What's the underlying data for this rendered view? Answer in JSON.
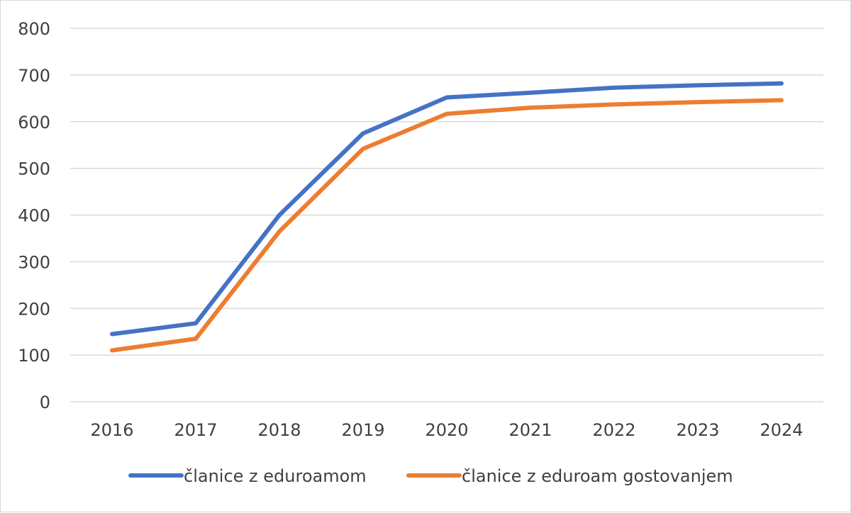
{
  "chart_data": {
    "type": "line",
    "title": "",
    "xlabel": "",
    "ylabel": "",
    "categories": [
      "2016",
      "2017",
      "2018",
      "2019",
      "2020",
      "2021",
      "2022",
      "2023",
      "2024"
    ],
    "ylim": [
      0,
      800
    ],
    "yticks": [
      "0",
      "100",
      "200",
      "300",
      "400",
      "500",
      "600",
      "700",
      "800"
    ],
    "grid": "horizontal",
    "legend_position": "bottom",
    "series": [
      {
        "name": "članice z eduroamom",
        "color": "#4472C4",
        "values": [
          145,
          168,
          400,
          575,
          652,
          662,
          673,
          678,
          682
        ]
      },
      {
        "name": "članice z eduroam gostovanjem",
        "color": "#ED7D31",
        "values": [
          110,
          135,
          365,
          542,
          617,
          630,
          637,
          642,
          646
        ]
      }
    ]
  }
}
